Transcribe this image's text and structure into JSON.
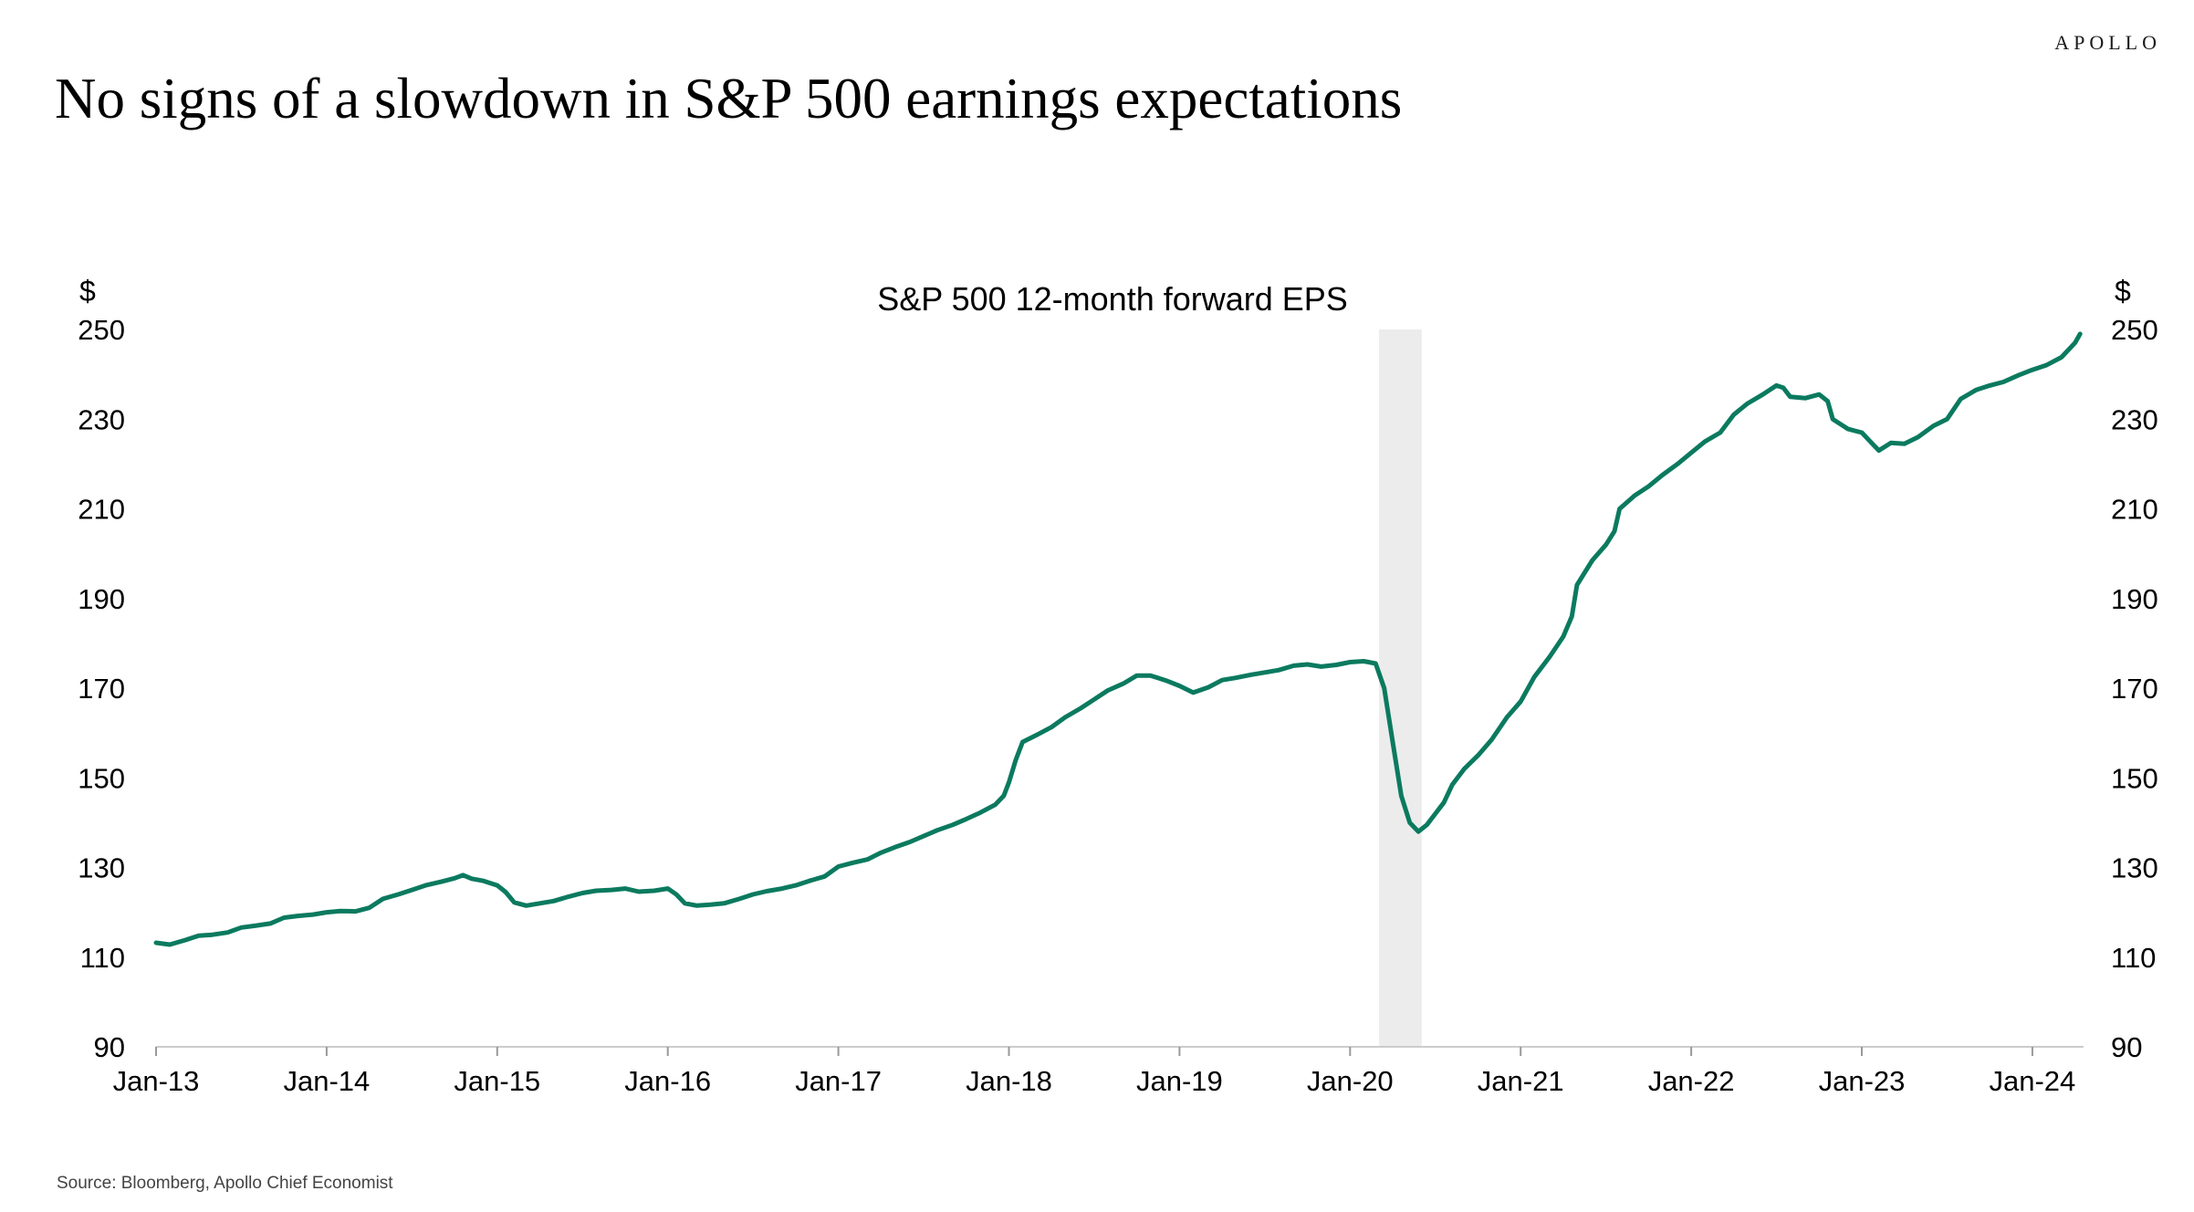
{
  "header": {
    "brand": "APOLLO",
    "title": "No signs of a slowdown in S&P 500 earnings expectations"
  },
  "footer": {
    "source": "Source: Bloomberg, Apollo Chief Economist"
  },
  "colors": {
    "line": "#0b7a5f",
    "recession_band": "#ececec",
    "axis": "#cccccc",
    "text": "#000000"
  },
  "chart_data": {
    "type": "line",
    "title": "S&P 500 12-month forward EPS",
    "y_unit_left": "$",
    "y_unit_right": "$",
    "ylim": [
      90,
      250
    ],
    "yticks": [
      90,
      110,
      130,
      150,
      170,
      190,
      210,
      230,
      250
    ],
    "xlim": [
      2013.0,
      2024.3
    ],
    "x_ticks": [
      {
        "label": "Jan-13",
        "value": 2013
      },
      {
        "label": "Jan-14",
        "value": 2014
      },
      {
        "label": "Jan-15",
        "value": 2015
      },
      {
        "label": "Jan-16",
        "value": 2016
      },
      {
        "label": "Jan-17",
        "value": 2017
      },
      {
        "label": "Jan-18",
        "value": 2018
      },
      {
        "label": "Jan-19",
        "value": 2019
      },
      {
        "label": "Jan-20",
        "value": 2020
      },
      {
        "label": "Jan-21",
        "value": 2021
      },
      {
        "label": "Jan-22",
        "value": 2022
      },
      {
        "label": "Jan-23",
        "value": 2023
      },
      {
        "label": "Jan-24",
        "value": 2024
      }
    ],
    "shaded_ranges": [
      [
        2020.17,
        2020.42
      ]
    ],
    "grid": false,
    "series": [
      {
        "points": [
          [
            2013.0,
            113.2
          ],
          [
            2013.08,
            112.8
          ],
          [
            2013.17,
            113.8
          ],
          [
            2013.25,
            114.8
          ],
          [
            2013.33,
            115.0
          ],
          [
            2013.42,
            115.5
          ],
          [
            2013.5,
            116.6
          ],
          [
            2013.58,
            117.0
          ],
          [
            2013.67,
            117.5
          ],
          [
            2013.75,
            118.8
          ],
          [
            2013.83,
            119.2
          ],
          [
            2013.92,
            119.5
          ],
          [
            2014.0,
            120.0
          ],
          [
            2014.08,
            120.3
          ],
          [
            2014.17,
            120.2
          ],
          [
            2014.25,
            121.0
          ],
          [
            2014.33,
            123.0
          ],
          [
            2014.42,
            124.0
          ],
          [
            2014.5,
            125.0
          ],
          [
            2014.58,
            126.0
          ],
          [
            2014.67,
            126.8
          ],
          [
            2014.75,
            127.6
          ],
          [
            2014.8,
            128.3
          ],
          [
            2014.85,
            127.5
          ],
          [
            2014.92,
            127.0
          ],
          [
            2015.0,
            126.0
          ],
          [
            2015.05,
            124.5
          ],
          [
            2015.1,
            122.2
          ],
          [
            2015.17,
            121.5
          ],
          [
            2015.25,
            122.0
          ],
          [
            2015.33,
            122.5
          ],
          [
            2015.42,
            123.5
          ],
          [
            2015.5,
            124.3
          ],
          [
            2015.58,
            124.8
          ],
          [
            2015.67,
            125.0
          ],
          [
            2015.75,
            125.3
          ],
          [
            2015.83,
            124.6
          ],
          [
            2015.92,
            124.8
          ],
          [
            2016.0,
            125.3
          ],
          [
            2016.05,
            124.0
          ],
          [
            2016.1,
            122.0
          ],
          [
            2016.17,
            121.5
          ],
          [
            2016.25,
            121.7
          ],
          [
            2016.33,
            122.0
          ],
          [
            2016.42,
            123.0
          ],
          [
            2016.5,
            124.0
          ],
          [
            2016.58,
            124.7
          ],
          [
            2016.67,
            125.3
          ],
          [
            2016.75,
            126.0
          ],
          [
            2016.83,
            127.0
          ],
          [
            2016.92,
            128.0
          ],
          [
            2017.0,
            130.2
          ],
          [
            2017.08,
            131.0
          ],
          [
            2017.17,
            131.8
          ],
          [
            2017.25,
            133.3
          ],
          [
            2017.33,
            134.5
          ],
          [
            2017.42,
            135.7
          ],
          [
            2017.5,
            137.0
          ],
          [
            2017.58,
            138.3
          ],
          [
            2017.67,
            139.5
          ],
          [
            2017.75,
            140.8
          ],
          [
            2017.83,
            142.2
          ],
          [
            2017.92,
            144.0
          ],
          [
            2017.97,
            146.0
          ],
          [
            2018.0,
            149.0
          ],
          [
            2018.04,
            154.0
          ],
          [
            2018.08,
            158.0
          ],
          [
            2018.17,
            159.7
          ],
          [
            2018.25,
            161.3
          ],
          [
            2018.33,
            163.5
          ],
          [
            2018.42,
            165.5
          ],
          [
            2018.5,
            167.5
          ],
          [
            2018.58,
            169.5
          ],
          [
            2018.67,
            171.0
          ],
          [
            2018.75,
            172.8
          ],
          [
            2018.83,
            172.8
          ],
          [
            2018.92,
            171.7
          ],
          [
            2019.0,
            170.5
          ],
          [
            2019.08,
            169.0
          ],
          [
            2019.17,
            170.2
          ],
          [
            2019.25,
            171.8
          ],
          [
            2019.33,
            172.3
          ],
          [
            2019.42,
            173.0
          ],
          [
            2019.5,
            173.5
          ],
          [
            2019.58,
            174.0
          ],
          [
            2019.67,
            175.0
          ],
          [
            2019.75,
            175.3
          ],
          [
            2019.83,
            174.8
          ],
          [
            2019.92,
            175.2
          ],
          [
            2020.0,
            175.8
          ],
          [
            2020.08,
            176.0
          ],
          [
            2020.15,
            175.5
          ],
          [
            2020.2,
            170.0
          ],
          [
            2020.25,
            158.0
          ],
          [
            2020.3,
            146.0
          ],
          [
            2020.35,
            140.0
          ],
          [
            2020.4,
            138.0
          ],
          [
            2020.45,
            139.5
          ],
          [
            2020.5,
            142.0
          ],
          [
            2020.55,
            144.5
          ],
          [
            2020.6,
            148.5
          ],
          [
            2020.67,
            152.0
          ],
          [
            2020.75,
            155.0
          ],
          [
            2020.83,
            158.5
          ],
          [
            2020.92,
            163.5
          ],
          [
            2021.0,
            167.0
          ],
          [
            2021.08,
            172.5
          ],
          [
            2021.17,
            177.0
          ],
          [
            2021.25,
            181.5
          ],
          [
            2021.3,
            186.0
          ],
          [
            2021.33,
            193.0
          ],
          [
            2021.42,
            198.5
          ],
          [
            2021.5,
            202.0
          ],
          [
            2021.55,
            205.0
          ],
          [
            2021.58,
            210.0
          ],
          [
            2021.67,
            213.0
          ],
          [
            2021.75,
            215.0
          ],
          [
            2021.83,
            217.5
          ],
          [
            2021.92,
            220.0
          ],
          [
            2022.0,
            222.5
          ],
          [
            2022.08,
            225.0
          ],
          [
            2022.17,
            227.0
          ],
          [
            2022.25,
            231.0
          ],
          [
            2022.33,
            233.5
          ],
          [
            2022.42,
            235.5
          ],
          [
            2022.5,
            237.5
          ],
          [
            2022.54,
            237.0
          ],
          [
            2022.58,
            235.0
          ],
          [
            2022.67,
            234.7
          ],
          [
            2022.75,
            235.5
          ],
          [
            2022.8,
            234.0
          ],
          [
            2022.83,
            230.0
          ],
          [
            2022.92,
            227.8
          ],
          [
            2023.0,
            227.0
          ],
          [
            2023.05,
            225.0
          ],
          [
            2023.1,
            223.0
          ],
          [
            2023.17,
            224.7
          ],
          [
            2023.25,
            224.5
          ],
          [
            2023.33,
            226.0
          ],
          [
            2023.42,
            228.5
          ],
          [
            2023.5,
            230.0
          ],
          [
            2023.58,
            234.5
          ],
          [
            2023.67,
            236.5
          ],
          [
            2023.75,
            237.5
          ],
          [
            2023.83,
            238.3
          ],
          [
            2023.92,
            239.8
          ],
          [
            2024.0,
            241.0
          ],
          [
            2024.08,
            242.0
          ],
          [
            2024.17,
            243.8
          ],
          [
            2024.25,
            247.0
          ],
          [
            2024.28,
            249.0
          ]
        ]
      }
    ]
  }
}
